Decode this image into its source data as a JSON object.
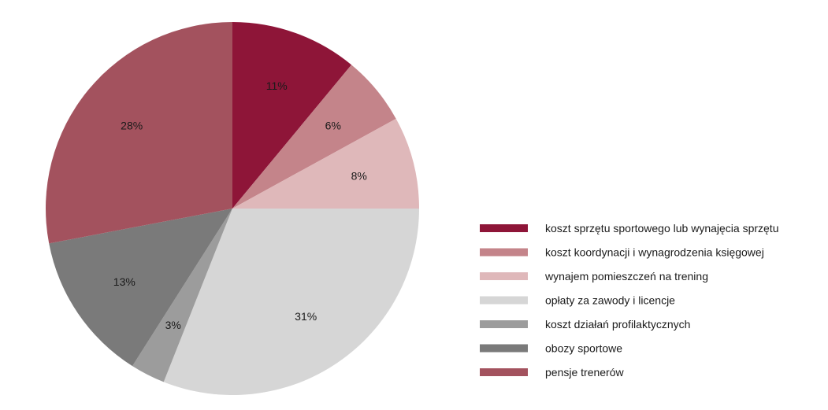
{
  "chart_data": {
    "type": "pie",
    "title": "",
    "legend_position": "right",
    "start_angle_deg": 0,
    "direction": "clockwise",
    "slices": [
      {
        "name": "koszt sprzętu sportowego lub wynajęcia sprzętu",
        "value": 11,
        "label": "11%",
        "color": "#8e1538"
      },
      {
        "name": "koszt koordynacji i wynagrodzenia księgowej",
        "value": 6,
        "label": "6%",
        "color": "#c4848a"
      },
      {
        "name": "wynajem pomieszczeń na trening",
        "value": 8,
        "label": "8%",
        "color": "#dfb8ba"
      },
      {
        "name": "opłaty za zawody i licencje",
        "value": 31,
        "label": "31%",
        "color": "#d6d6d6"
      },
      {
        "name": "koszt działań profilaktycznych",
        "value": 3,
        "label": "3%",
        "color": "#9c9c9c"
      },
      {
        "name": "obozy sportowe",
        "value": 13,
        "label": "13%",
        "color": "#7a7a7a"
      },
      {
        "name": "pensje trenerów",
        "value": 28,
        "label": "28%",
        "color": "#a3525e"
      }
    ]
  }
}
